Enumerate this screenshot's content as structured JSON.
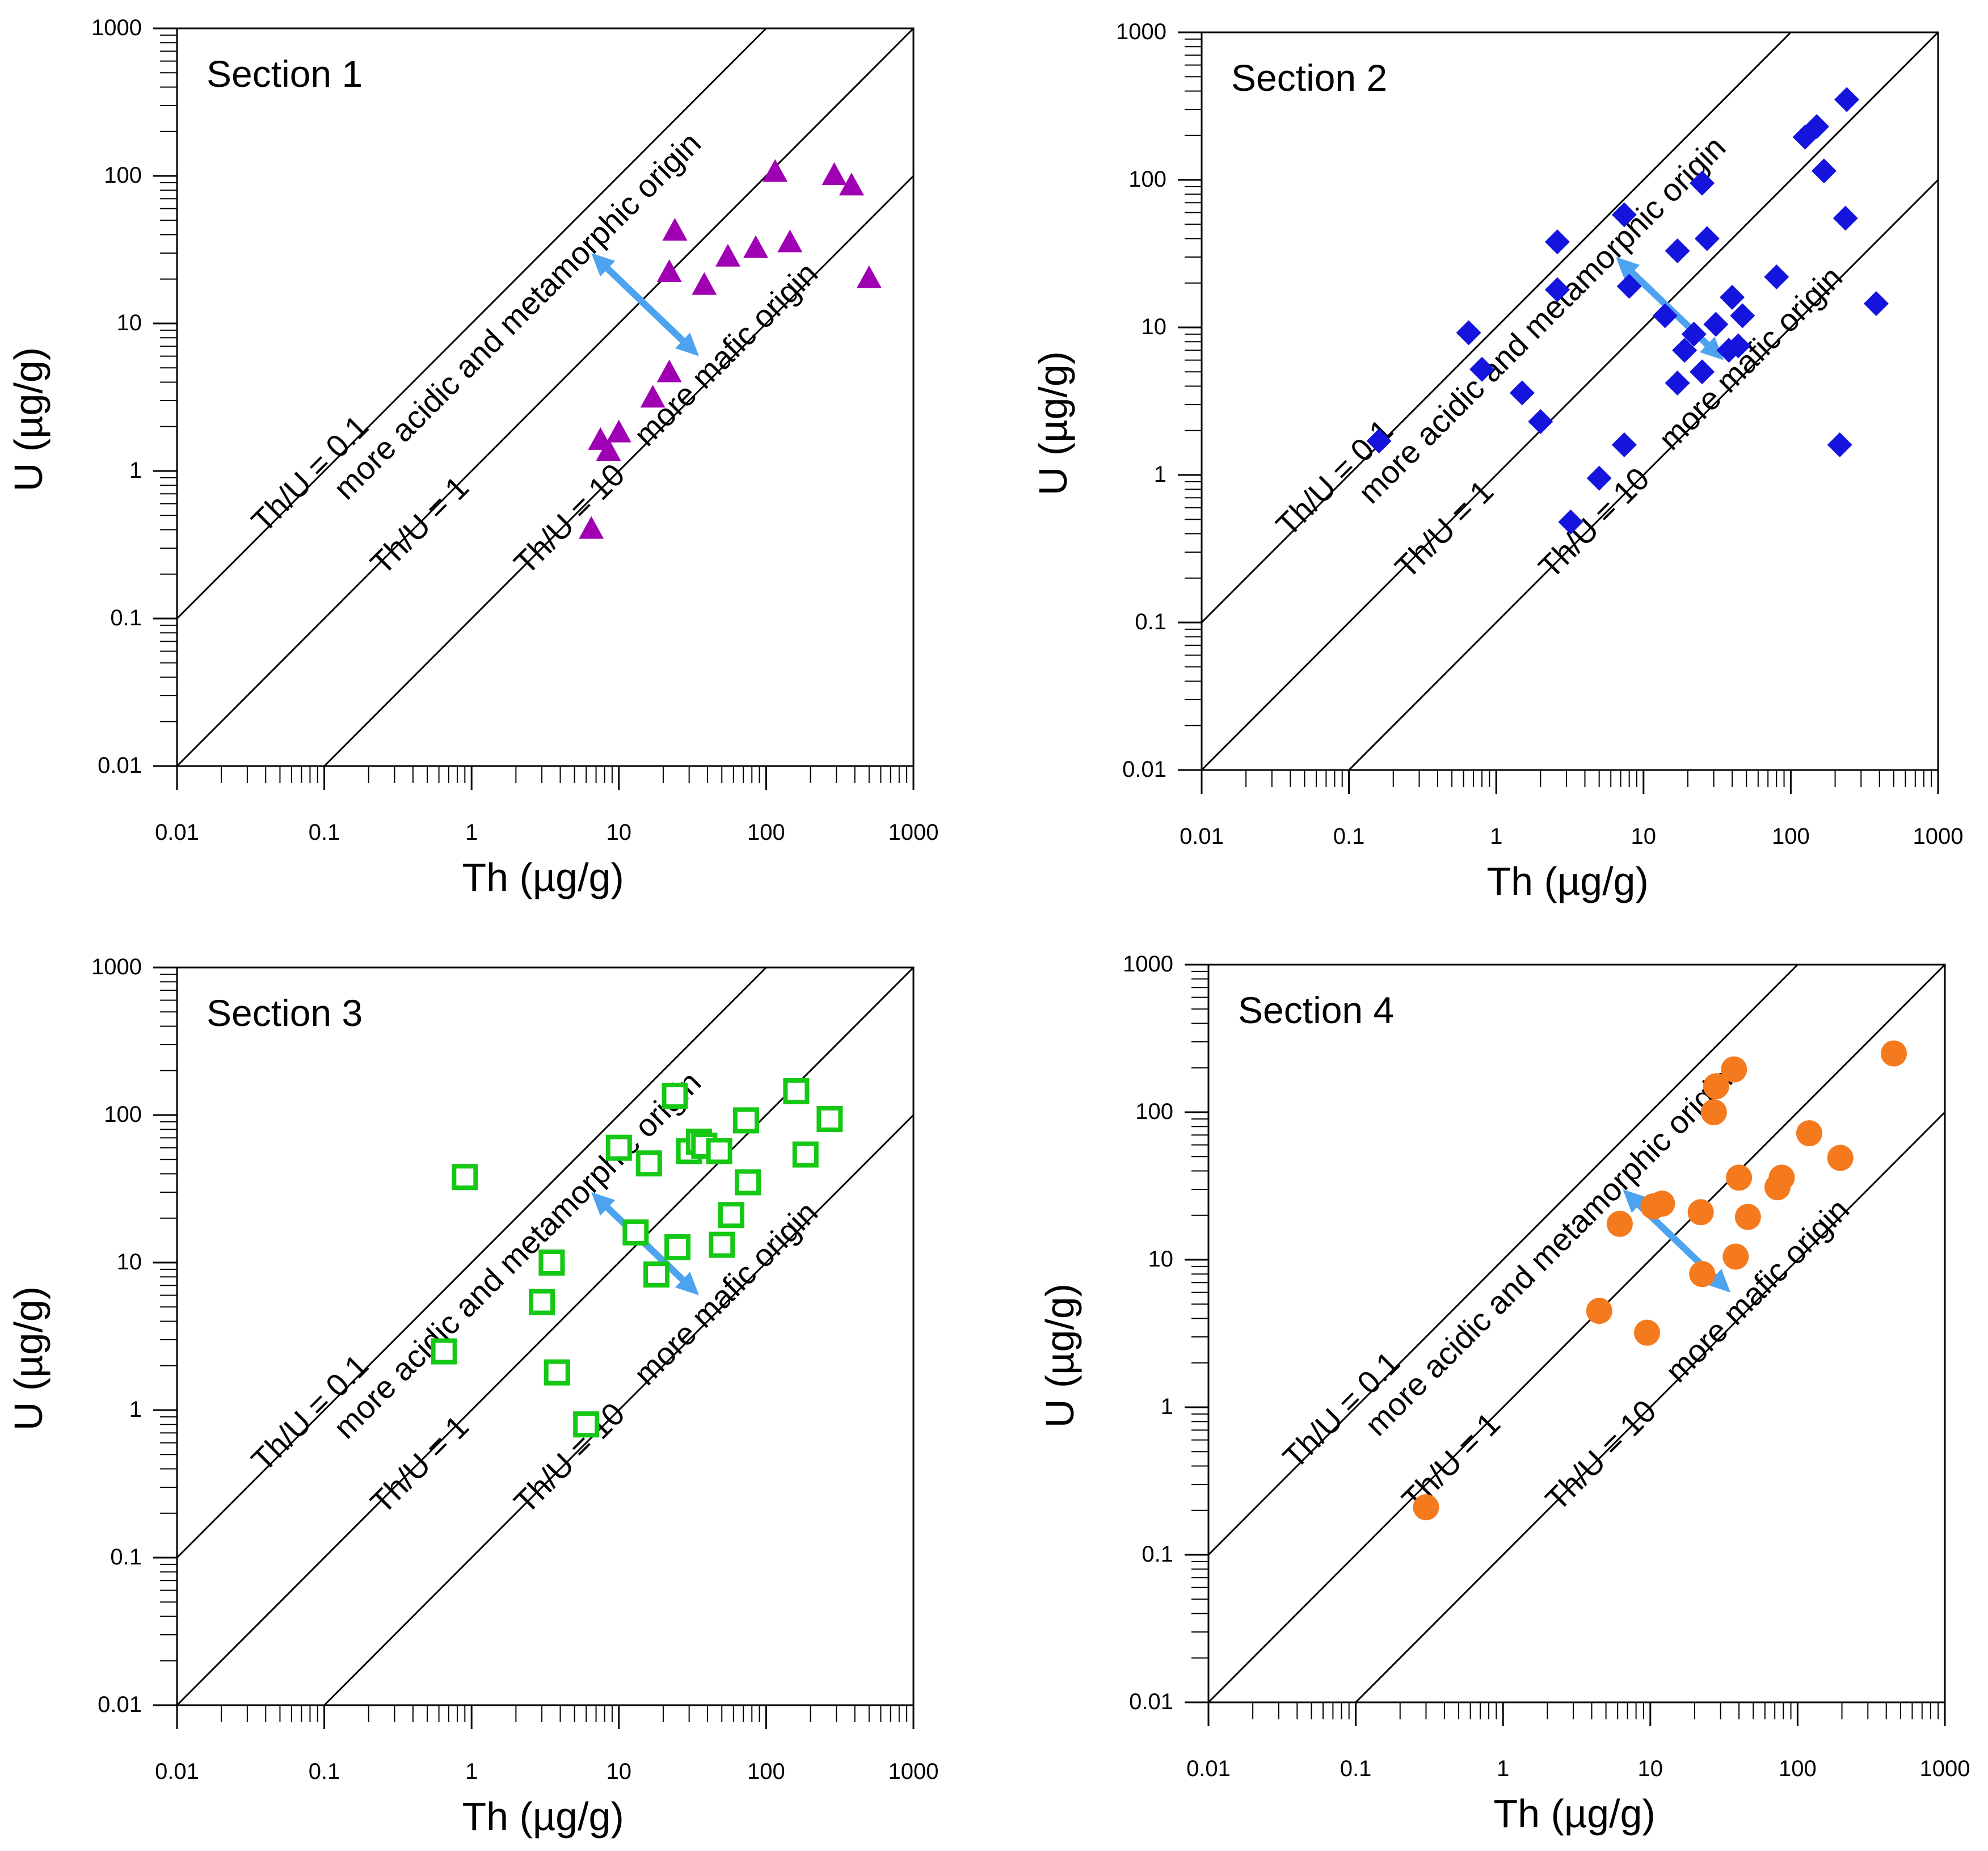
{
  "figure": {
    "layout": "2x2 grid of log-log scatter plots",
    "arrow_color": "#4ea3f0",
    "line_color": "#000000"
  },
  "chart_data": [
    {
      "type": "scatter",
      "title": "Section 1",
      "xlabel": "Th (µg/g)",
      "ylabel": "U (µg/g)",
      "xscale": "log",
      "yscale": "log",
      "xlim": [
        0.01,
        1000
      ],
      "ylim": [
        0.01,
        1000
      ],
      "xticks": [
        "0.01",
        "0.1",
        "1",
        "10",
        "100",
        "1000"
      ],
      "yticks": [
        "0.01",
        "0.1",
        "1",
        "10",
        "100",
        "1000"
      ],
      "grid": false,
      "marker": "triangle",
      "marker_color": "#a000b4",
      "marker_filled": true,
      "reference_lines": [
        {
          "label": "Th/U = 0.1",
          "ratio": 0.1
        },
        {
          "label": "Th/U = 1",
          "ratio": 1
        },
        {
          "label": "Th/U = 10",
          "ratio": 10
        }
      ],
      "annotations": {
        "acidic": "more acidic and metamorphic origin",
        "mafic": "more mafic origin"
      },
      "trend_arrow": {
        "from": [
          6.5,
          30
        ],
        "to": [
          35,
          6
        ]
      },
      "points": [
        [
          6.5,
          0.4
        ],
        [
          7.5,
          1.6
        ],
        [
          8.5,
          1.35
        ],
        [
          10,
          1.8
        ],
        [
          17,
          3.1
        ],
        [
          22,
          4.6
        ],
        [
          22,
          22
        ],
        [
          24,
          42
        ],
        [
          38,
          18
        ],
        [
          55,
          28
        ],
        [
          85,
          32
        ],
        [
          115,
          105
        ],
        [
          145,
          35
        ],
        [
          290,
          100
        ],
        [
          380,
          85
        ],
        [
          500,
          20
        ]
      ]
    },
    {
      "type": "scatter",
      "title": "Section 2",
      "xlabel": "Th (µg/g)",
      "ylabel": "U (µg/g)",
      "xscale": "log",
      "yscale": "log",
      "xlim": [
        0.01,
        1000
      ],
      "ylim": [
        0.01,
        1000
      ],
      "xticks": [
        "0.01",
        "0.1",
        "1",
        "10",
        "100",
        "1000"
      ],
      "yticks": [
        "0.01",
        "0.1",
        "1",
        "10",
        "100",
        "1000"
      ],
      "grid": false,
      "marker": "diamond",
      "marker_color": "#1414dc",
      "marker_filled": true,
      "reference_lines": [
        {
          "label": "Th/U = 0.1",
          "ratio": 0.1
        },
        {
          "label": "Th/U = 1",
          "ratio": 1
        },
        {
          "label": "Th/U = 10",
          "ratio": 10
        }
      ],
      "annotations": {
        "acidic": "more acidic and metamorphic origin",
        "mafic": "more mafic origin"
      },
      "trend_arrow": {
        "from": [
          6.5,
          30
        ],
        "to": [
          35,
          6
        ]
      },
      "points": [
        [
          0.16,
          1.7
        ],
        [
          0.65,
          9.2
        ],
        [
          0.8,
          5.2
        ],
        [
          1.5,
          3.6
        ],
        [
          2,
          2.3
        ],
        [
          2.6,
          38
        ],
        [
          2.6,
          18
        ],
        [
          3.2,
          0.48
        ],
        [
          5,
          0.95
        ],
        [
          7.4,
          1.6
        ],
        [
          7.4,
          58
        ],
        [
          8,
          19
        ],
        [
          14,
          12
        ],
        [
          17,
          33
        ],
        [
          17,
          4.2
        ],
        [
          19,
          7
        ],
        [
          22,
          9
        ],
        [
          25,
          95
        ],
        [
          25,
          5
        ],
        [
          27,
          40
        ],
        [
          31,
          10.5
        ],
        [
          38,
          7
        ],
        [
          40,
          16
        ],
        [
          44,
          7.5
        ],
        [
          47,
          12
        ],
        [
          80,
          22
        ],
        [
          125,
          195
        ],
        [
          150,
          230
        ],
        [
          168,
          115
        ],
        [
          215,
          1.6
        ],
        [
          235,
          55
        ],
        [
          240,
          350
        ],
        [
          380,
          14.5
        ]
      ]
    },
    {
      "type": "scatter",
      "title": "Section 3",
      "xlabel": "Th (µg/g)",
      "ylabel": "U (µg/g)",
      "xscale": "log",
      "yscale": "log",
      "xlim": [
        0.01,
        1000
      ],
      "ylim": [
        0.01,
        1000
      ],
      "xticks": [
        "0.01",
        "0.1",
        "1",
        "10",
        "100",
        "1000"
      ],
      "yticks": [
        "0.01",
        "0.1",
        "1",
        "10",
        "100",
        "1000"
      ],
      "grid": false,
      "marker": "square",
      "marker_color": "#14c814",
      "marker_filled": false,
      "reference_lines": [
        {
          "label": "Th/U = 0.1",
          "ratio": 0.1
        },
        {
          "label": "Th/U = 1",
          "ratio": 1
        },
        {
          "label": "Th/U = 10",
          "ratio": 10
        }
      ],
      "annotations": {
        "acidic": "more acidic and metamorphic origin",
        "mafic": "more mafic origin"
      },
      "trend_arrow": {
        "from": [
          6.5,
          30
        ],
        "to": [
          35,
          6
        ]
      },
      "points": [
        [
          0.65,
          2.5
        ],
        [
          0.9,
          38
        ],
        [
          3,
          5.4
        ],
        [
          3.5,
          10
        ],
        [
          3.8,
          1.8
        ],
        [
          6,
          0.8
        ],
        [
          10,
          60
        ],
        [
          13,
          16
        ],
        [
          16,
          47
        ],
        [
          18,
          8.3
        ],
        [
          24,
          135
        ],
        [
          25,
          12.7
        ],
        [
          30,
          57
        ],
        [
          35,
          66
        ],
        [
          38,
          62
        ],
        [
          48,
          57
        ],
        [
          50,
          13.2
        ],
        [
          58,
          21
        ],
        [
          73,
          92
        ],
        [
          75,
          35
        ],
        [
          160,
          145
        ],
        [
          185,
          54
        ],
        [
          270,
          94
        ]
      ]
    },
    {
      "type": "scatter",
      "title": "Section 4",
      "xlabel": "Th (µg/g)",
      "ylabel": "U (µg/g)",
      "xscale": "log",
      "yscale": "log",
      "xlim": [
        0.01,
        1000
      ],
      "ylim": [
        0.01,
        1000
      ],
      "xticks": [
        "0.01",
        "0.1",
        "1",
        "10",
        "100",
        "1000"
      ],
      "yticks": [
        "0.01",
        "0.1",
        "1",
        "10",
        "100",
        "1000"
      ],
      "grid": false,
      "marker": "circle",
      "marker_color": "#f57a1e",
      "marker_filled": true,
      "reference_lines": [
        {
          "label": "Th/U = 0.1",
          "ratio": 0.1
        },
        {
          "label": "Th/U = 1",
          "ratio": 1
        },
        {
          "label": "Th/U = 10",
          "ratio": 10
        }
      ],
      "annotations": {
        "acidic": "more acidic and metamorphic origin",
        "mafic": "more mafic origin"
      },
      "trend_arrow": {
        "from": [
          6.5,
          30
        ],
        "to": [
          35,
          6
        ]
      },
      "points": [
        [
          0.3,
          0.21
        ],
        [
          4.5,
          4.5
        ],
        [
          6.2,
          17.5
        ],
        [
          9.5,
          3.2
        ],
        [
          10.5,
          23
        ],
        [
          12,
          24
        ],
        [
          22,
          21
        ],
        [
          22.5,
          8
        ],
        [
          27,
          100
        ],
        [
          28,
          150
        ],
        [
          37,
          195
        ],
        [
          38,
          10.5
        ],
        [
          40,
          36
        ],
        [
          46,
          19.5
        ],
        [
          73,
          31
        ],
        [
          78,
          36
        ],
        [
          120,
          72
        ],
        [
          195,
          49
        ],
        [
          450,
          250
        ]
      ]
    }
  ]
}
